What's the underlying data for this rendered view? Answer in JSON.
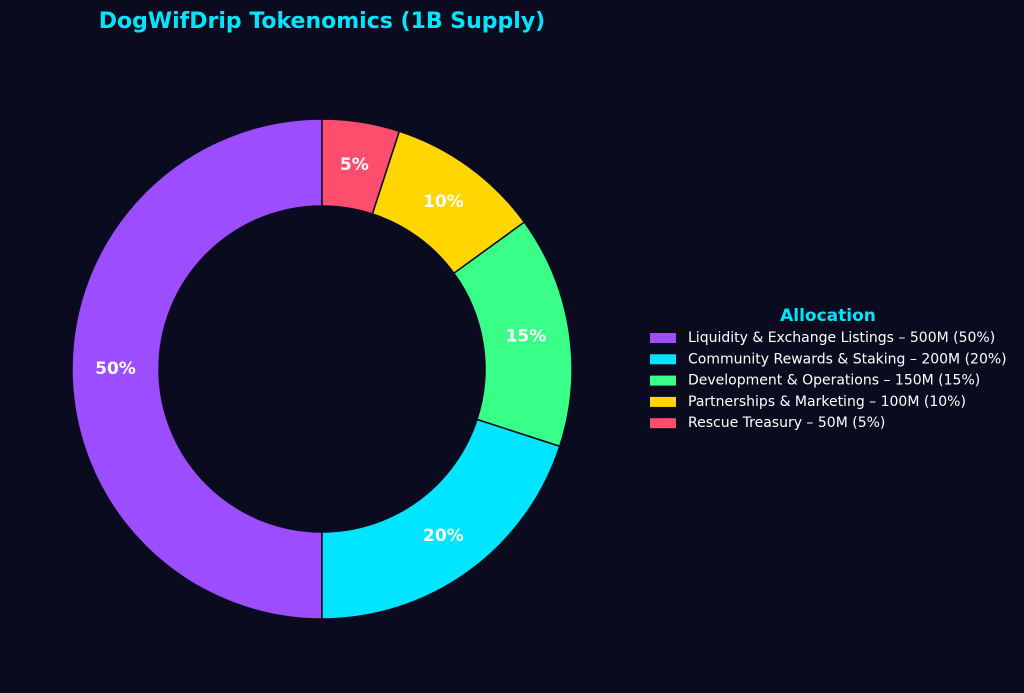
{
  "chart_data": {
    "type": "pie",
    "variant": "donut",
    "title": "DogWifDrip Tokenomics (1B Supply)",
    "legend_title": "Allocation",
    "legend_position": "right",
    "slices": [
      {
        "label": "Liquidity & Exchange Listings – 500M (50%)",
        "value": 50,
        "pct_label": "50%",
        "color": "#9b4dff"
      },
      {
        "label": "Community Rewards & Staking – 200M (20%)",
        "value": 20,
        "pct_label": "20%",
        "color": "#00e5ff"
      },
      {
        "label": "Development & Operations – 150M (15%)",
        "value": 15,
        "pct_label": "15%",
        "color": "#39ff88"
      },
      {
        "label": "Partnerships & Marketing – 100M (10%)",
        "value": 10,
        "pct_label": "10%",
        "color": "#ffd600"
      },
      {
        "label": "Rescue Treasury – 50M (5%)",
        "value": 5,
        "pct_label": "5%",
        "color": "#ff4d6d"
      }
    ],
    "start_position": "top",
    "direction": "counterclockwise"
  },
  "colors": {
    "background": "#0b0b20",
    "title": "#00e5ff",
    "text": "#ffffff"
  }
}
